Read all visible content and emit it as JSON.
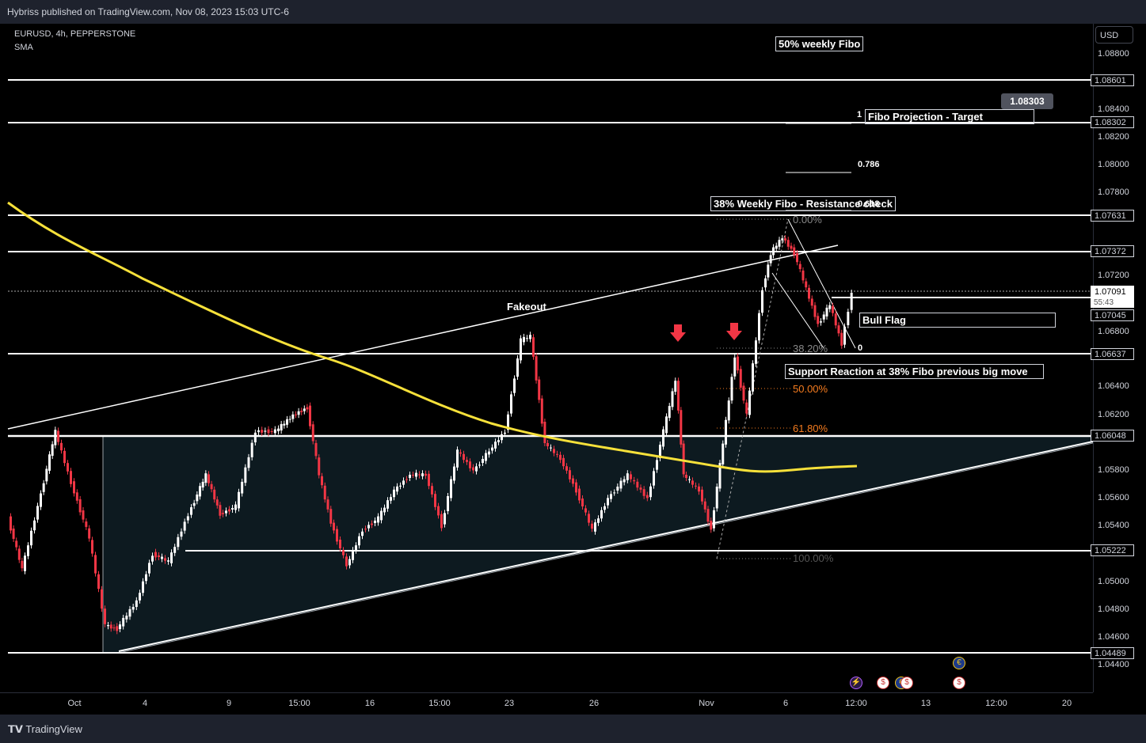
{
  "header": {
    "publisher": "Hybriss published on TradingView.com, Nov 08, 2023 15:03 UTC-6"
  },
  "legend": {
    "symbol": "EURUSD, 4h, PEPPERSTONE",
    "indicator": "SMA"
  },
  "currency": "USD",
  "price_ticks": [
    "1.08800",
    "1.08400",
    "1.08200",
    "1.08000",
    "1.07800",
    "1.07200",
    "1.06800",
    "1.06400",
    "1.06200",
    "1.05800",
    "1.05600",
    "1.05400",
    "1.05000",
    "1.04800",
    "1.04600",
    "1.04400"
  ],
  "price_labels": {
    "l1": "1.08601",
    "l2": "1.08302",
    "l3": "1.07631",
    "l4": "1.07372",
    "l5": "1.07091",
    "timer": "55:43",
    "l6": "1.07045",
    "l7": "1.06637",
    "l8": "1.06048",
    "l9": "1.05222",
    "l10": "1.04489"
  },
  "time_ticks": [
    "Oct",
    "4",
    "9",
    "15:00",
    "16",
    "15:00",
    "23",
    "26",
    "Nov",
    "6",
    "12:00",
    "13",
    "12:00",
    "20"
  ],
  "annotations": {
    "weekly50": "50% weekly Fibo",
    "projection": "Fibo Projection - Target",
    "projection_value": "1.08303",
    "proj_1": "1",
    "proj_786": "0.786",
    "proj_618": "0.618",
    "weekly38": "38% Weekly Fibo - Resistance check",
    "fakeout": "Fakeout",
    "bullflag": "Bull Flag",
    "support": "Support Reaction at 38% Fibo previous big move",
    "fib0": "0.00%",
    "fib382": "38.20%",
    "fib50": "50.00%",
    "fib618": "61.80%",
    "fib100": "100.00%",
    "flag0": "0"
  },
  "colors": {
    "up": "#ffffff",
    "down": "#f23645",
    "sma": "#f7e13a",
    "fib_orange": "#f57c1f"
  },
  "events": [
    {
      "icon": "lightning-icon",
      "glyph": "⚡"
    },
    {
      "icon": "us-flag-icon",
      "glyph": "$"
    },
    {
      "icon": "eu-flag-icon",
      "glyph": "€"
    },
    {
      "icon": "us-flag-icon",
      "glyph": "$"
    },
    {
      "icon": "eu-flag-icon",
      "glyph": "€"
    },
    {
      "icon": "us-flag-icon",
      "glyph": "$"
    }
  ],
  "footer": {
    "brand": "TradingView"
  }
}
